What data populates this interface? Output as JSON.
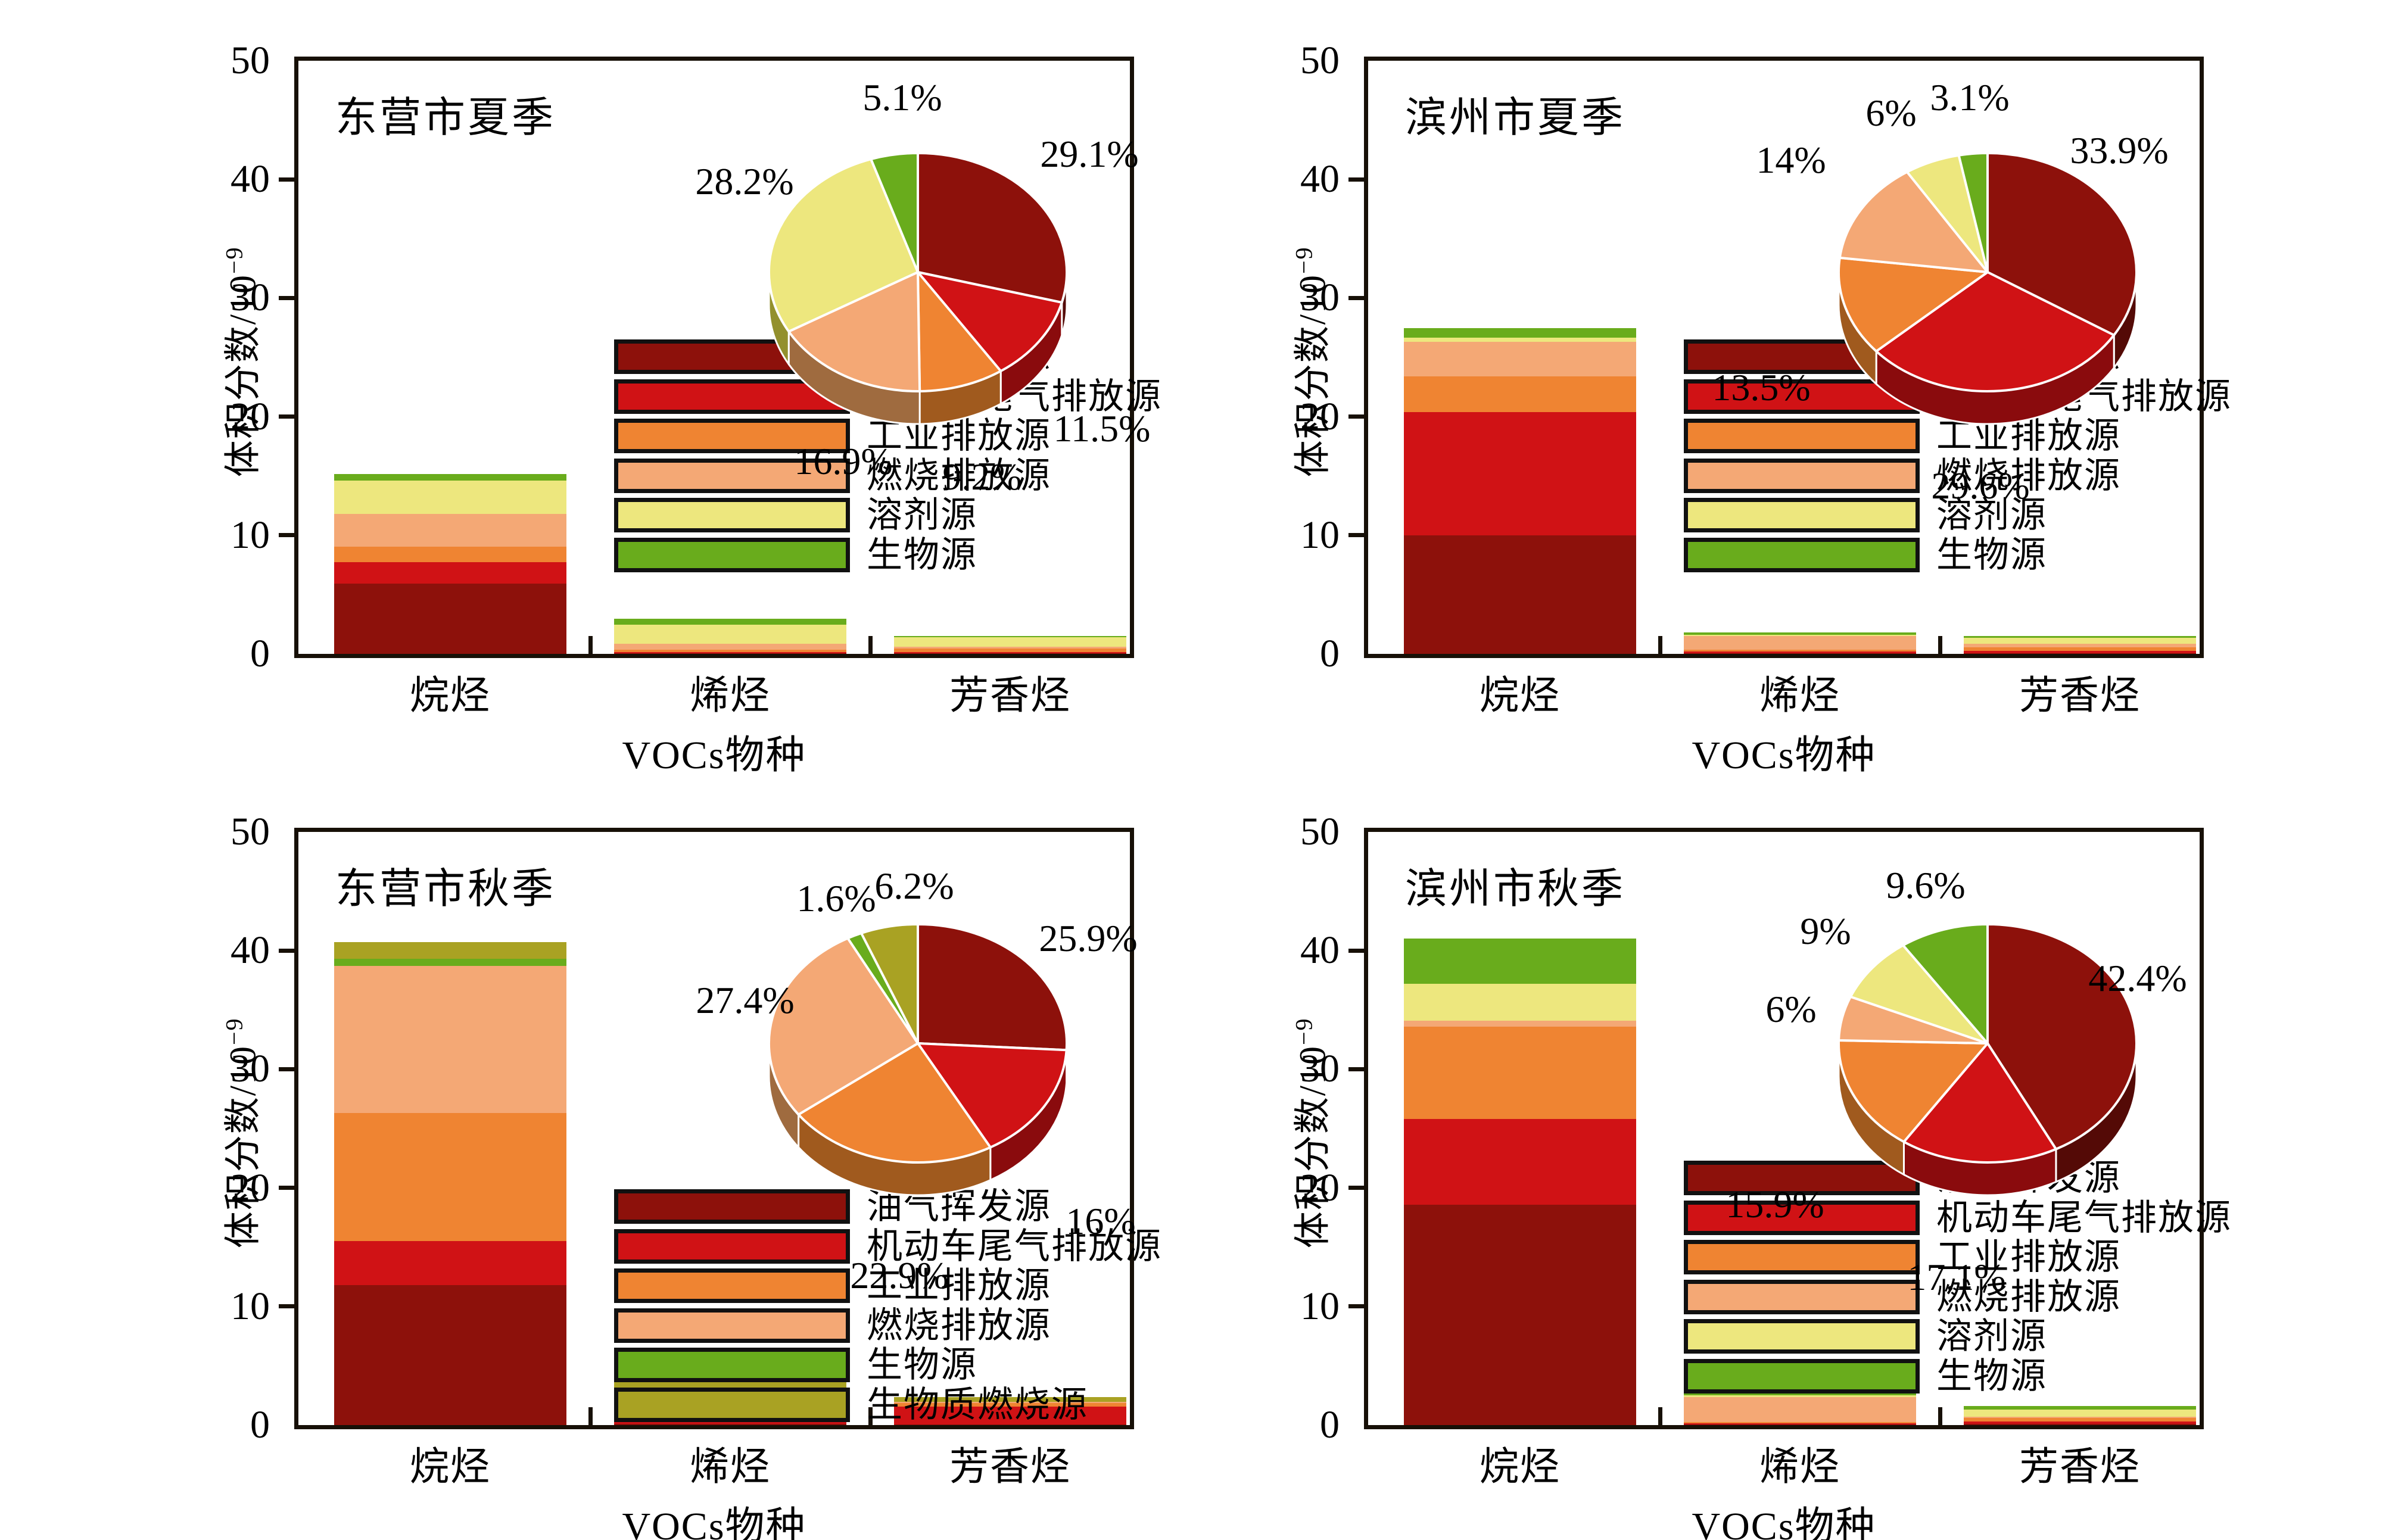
{
  "figure": {
    "ylabel_base": "体积分数/10",
    "ylabel_sup": "−9",
    "xlabel": "VOCs物种",
    "categories": [
      "烷烃",
      "烯烃",
      "芳香烃"
    ],
    "yticks": [
      "0",
      "10",
      "20",
      "30",
      "40",
      "50"
    ],
    "ylim": [
      0,
      50
    ],
    "background": "#ffffff"
  },
  "palette": {
    "oil": {
      "label": "油气挥发源",
      "color": "#8D110B",
      "side": "#540a06"
    },
    "vehicle": {
      "label": "机动车尾气排放源",
      "color": "#D01215",
      "side": "#8a0b0d"
    },
    "industry": {
      "label": "工业排放源",
      "color": "#EF8432",
      "side": "#a05a1e"
    },
    "combustion": {
      "label": "燃烧排放源",
      "color": "#F4A875",
      "side": "#9f6b3f"
    },
    "solvent": {
      "label": "溶剂源",
      "color": "#EDE77E",
      "side": "#93902d"
    },
    "bio": {
      "label": "生物源",
      "color": "#69AC1C",
      "side": "#41690f"
    },
    "biomass": {
      "label": "生物质燃烧源",
      "color": "#A9A223",
      "side": "#6d6913"
    }
  },
  "chart_data": [
    {
      "title": "东营市夏季",
      "type": "stacked-bar+pie",
      "categories": [
        "烷烃",
        "烯烃",
        "芳香烃"
      ],
      "sources": [
        "oil",
        "vehicle",
        "industry",
        "combustion",
        "solvent",
        "bio"
      ],
      "bar_series": [
        {
          "name": "油气挥发源",
          "values": [
            5.9,
            0.05,
            0.05
          ]
        },
        {
          "name": "机动车尾气排放源",
          "values": [
            1.85,
            0.1,
            0.1
          ]
        },
        {
          "name": "工业排放源",
          "values": [
            1.3,
            0.2,
            0.3
          ]
        },
        {
          "name": "燃烧排放源",
          "values": [
            2.75,
            0.5,
            0.15
          ]
        },
        {
          "name": "溶剂源",
          "values": [
            2.8,
            1.6,
            0.8
          ]
        },
        {
          "name": "生物源",
          "values": [
            0.55,
            0.5,
            0.1
          ]
        }
      ],
      "pie_values": [
        29.1,
        11.5,
        9.2,
        16.9,
        28.2,
        5.1
      ],
      "pie_labels": [
        "29.1%",
        "11.5%",
        "9.2%",
        "16.9%",
        "28.2%",
        "5.1%"
      ]
    },
    {
      "title": "滨州市夏季",
      "type": "stacked-bar+pie",
      "categories": [
        "烷烃",
        "烯烃",
        "芳香烃"
      ],
      "sources": [
        "oil",
        "vehicle",
        "industry",
        "combustion",
        "solvent",
        "bio"
      ],
      "bar_series": [
        {
          "name": "油气挥发源",
          "values": [
            10.0,
            0.05,
            0.05
          ]
        },
        {
          "name": "机动车尾气排放源",
          "values": [
            10.4,
            0.15,
            0.2
          ]
        },
        {
          "name": "工业排放源",
          "values": [
            3.0,
            0.15,
            0.3
          ]
        },
        {
          "name": "燃烧排放源",
          "values": [
            2.9,
            1.15,
            0.3
          ]
        },
        {
          "name": "溶剂源",
          "values": [
            0.35,
            0.1,
            0.5
          ]
        },
        {
          "name": "生物源",
          "values": [
            0.8,
            0.2,
            0.15
          ]
        }
      ],
      "pie_values": [
        33.9,
        29.6,
        13.5,
        14,
        6,
        3.1
      ],
      "pie_labels": [
        "33.9%",
        "29.6%",
        "13.5%",
        "14%",
        "6%",
        "3.1%"
      ]
    },
    {
      "title": "东营市秋季",
      "type": "stacked-bar+pie",
      "categories": [
        "烷烃",
        "烯烃",
        "芳香烃"
      ],
      "sources": [
        "oil",
        "vehicle",
        "industry",
        "combustion",
        "bio",
        "biomass"
      ],
      "bar_series": [
        {
          "name": "油气挥发源",
          "values": [
            11.8,
            0.1,
            0.05
          ]
        },
        {
          "name": "机动车尾气排放源",
          "values": [
            3.7,
            1.45,
            1.5
          ]
        },
        {
          "name": "工业排放源",
          "values": [
            10.8,
            0.25,
            0.3
          ]
        },
        {
          "name": "燃烧排放源",
          "values": [
            12.4,
            0.6,
            0.1
          ]
        },
        {
          "name": "生物源",
          "values": [
            0.6,
            0.1,
            0.0
          ]
        },
        {
          "name": "生物质燃烧源",
          "values": [
            1.4,
            1.2,
            0.4
          ]
        }
      ],
      "pie_values": [
        25.9,
        16,
        22.9,
        27.4,
        1.6,
        6.2
      ],
      "pie_labels": [
        "25.9%",
        "16%",
        "22.9%",
        "27.4%",
        "1.6%",
        "6.2%"
      ]
    },
    {
      "title": "滨州市秋季",
      "type": "stacked-bar+pie",
      "categories": [
        "烷烃",
        "烯烃",
        "芳香烃"
      ],
      "sources": [
        "oil",
        "vehicle",
        "industry",
        "combustion",
        "solvent",
        "bio"
      ],
      "bar_series": [
        {
          "name": "油气挥发源",
          "values": [
            18.6,
            0.05,
            0.1
          ]
        },
        {
          "name": "机动车尾气排放源",
          "values": [
            7.2,
            0.1,
            0.2
          ]
        },
        {
          "name": "工业排放源",
          "values": [
            7.8,
            0.1,
            0.3
          ]
        },
        {
          "name": "燃烧排放源",
          "values": [
            0.5,
            2.1,
            0.1
          ]
        },
        {
          "name": "溶剂源",
          "values": [
            3.1,
            0.15,
            0.6
          ]
        },
        {
          "name": "生物源",
          "values": [
            3.8,
            0.3,
            0.3
          ]
        }
      ],
      "pie_values": [
        42.4,
        17.1,
        15.9,
        6,
        9,
        9.6
      ],
      "pie_labels": [
        "42.4%",
        "17.1%",
        "15.9%",
        "6%",
        "9%",
        "9.6%"
      ]
    }
  ]
}
